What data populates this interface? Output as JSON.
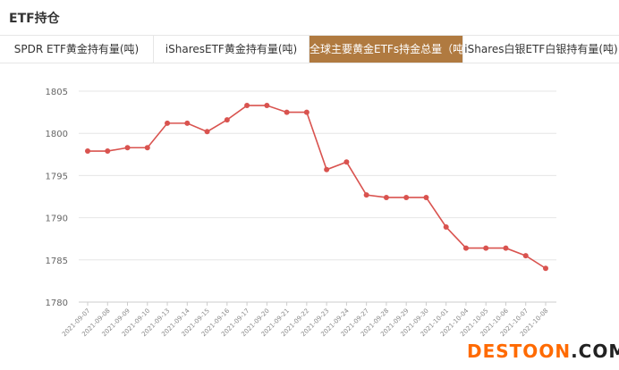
{
  "header": {
    "title": "ETF持仓"
  },
  "tabs": [
    {
      "label": "SPDR ETF黄金持有量(吨)",
      "active": false
    },
    {
      "label": "iSharesETF黄金持有量(吨)",
      "active": false
    },
    {
      "label": "全球主要黄金ETFs持金总量（吨）",
      "active": true
    },
    {
      "label": "iShares白银ETF白银持有量(吨)",
      "active": false
    }
  ],
  "colors": {
    "accent": "#b07a40",
    "line": "#d9534f",
    "grid": "#e6e6e6"
  },
  "chart_data": {
    "type": "line",
    "title": "",
    "xlabel": "",
    "ylabel": "",
    "ylim": [
      1780,
      1805
    ],
    "yticks": [
      1780,
      1785,
      1790,
      1795,
      1800,
      1805
    ],
    "grid": true,
    "categories": [
      "2021-09-07",
      "2021-09-08",
      "2021-09-09",
      "2021-09-10",
      "2021-09-13",
      "2021-09-14",
      "2021-09-15",
      "2021-09-16",
      "2021-09-17",
      "2021-09-20",
      "2021-09-21",
      "2021-09-22",
      "2021-09-23",
      "2021-09-24",
      "2021-09-27",
      "2021-09-28",
      "2021-09-29",
      "2021-09-30",
      "2021-10-01",
      "2021-10-04",
      "2021-10-05",
      "2021-10-06",
      "2021-10-07",
      "2021-10-08"
    ],
    "series": [
      {
        "values": [
          1797.9,
          1797.9,
          1798.3,
          1798.3,
          1801.2,
          1801.2,
          1800.2,
          1801.6,
          1803.3,
          1803.3,
          1802.5,
          1802.5,
          1795.7,
          1796.6,
          1792.7,
          1792.4,
          1792.4,
          1792.4,
          1788.9,
          1786.4,
          1786.4,
          1786.4,
          1785.5,
          1784.0
        ]
      }
    ]
  },
  "watermark": {
    "part1": "DESTOON",
    "part2": ".COM"
  }
}
